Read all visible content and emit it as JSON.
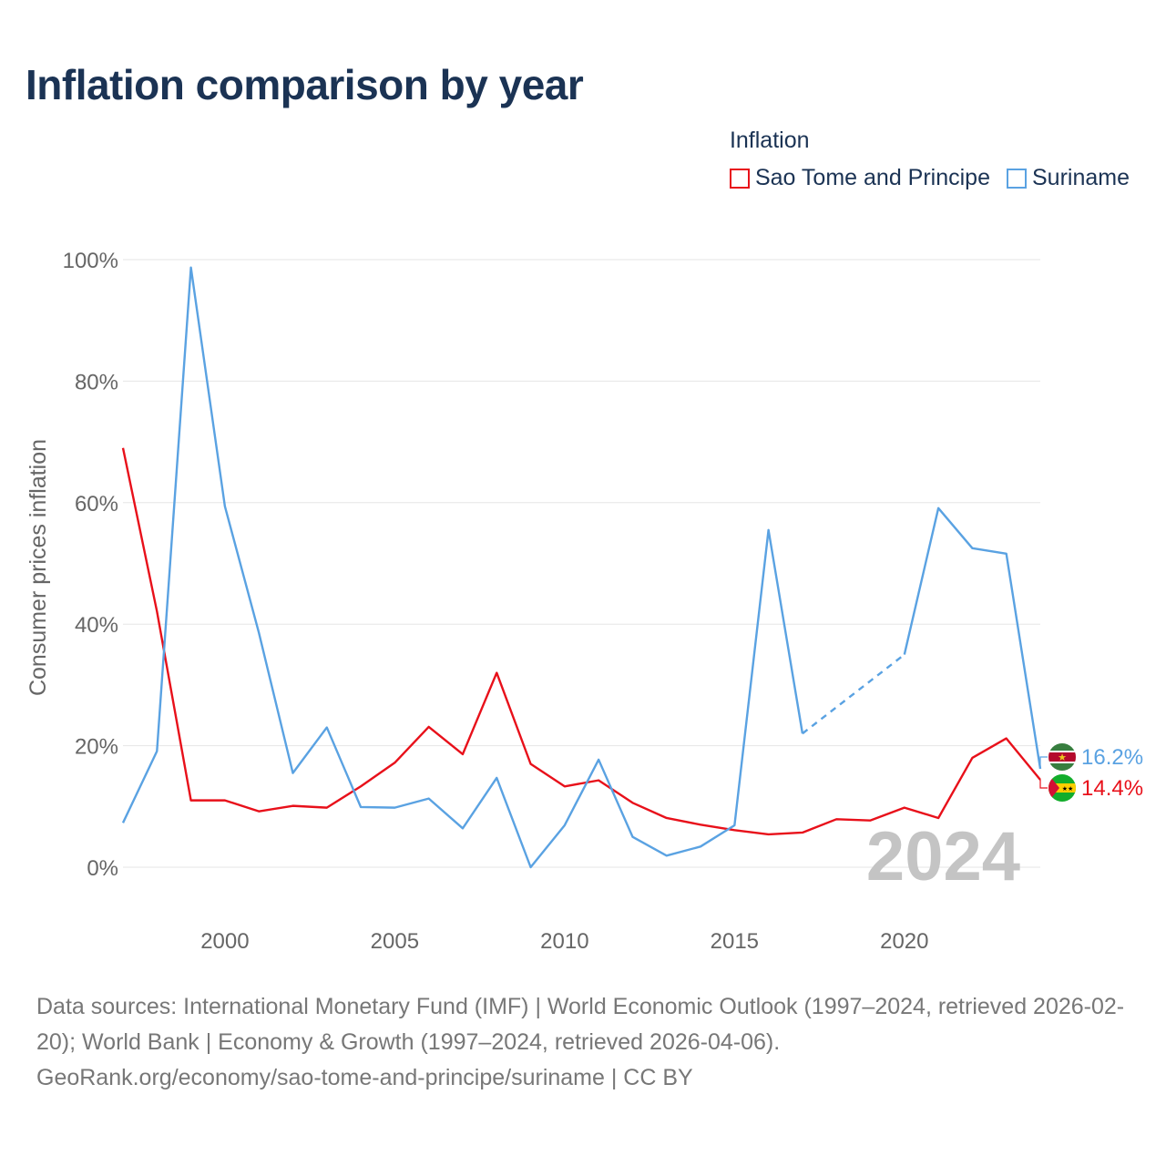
{
  "title": "Inflation comparison by year",
  "legend": {
    "title": "Inflation",
    "items": [
      {
        "label": "Sao Tome and Principe",
        "color": "#e8101a"
      },
      {
        "label": "Suriname",
        "color": "#5aa2e2"
      }
    ]
  },
  "footer": {
    "sources": "Data sources: International Monetary Fund (IMF) | World Economic Outlook (1997–2024, retrieved 2026-02-20); World Bank | Economy & Growth (1997–2024, retrieved 2026-04-06).",
    "credit": "GeoRank.org/economy/sao-tome-and-principe/suriname | CC BY"
  },
  "chart_data": {
    "type": "line",
    "title": "Inflation comparison by year",
    "ylabel": "Consumer prices inflation",
    "xlabel": "",
    "x": [
      1997,
      1998,
      1999,
      2000,
      2001,
      2002,
      2003,
      2004,
      2005,
      2006,
      2007,
      2008,
      2009,
      2010,
      2011,
      2012,
      2013,
      2014,
      2015,
      2016,
      2017,
      2018,
      2019,
      2020,
      2021,
      2022,
      2023,
      2024
    ],
    "xlim": [
      1997,
      2024
    ],
    "ylim": [
      0,
      100
    ],
    "x_ticks": [
      2000,
      2005,
      2010,
      2015,
      2020
    ],
    "y_ticks": [
      0,
      20,
      40,
      60,
      80,
      100
    ],
    "y_tick_labels": [
      "0%",
      "20%",
      "40%",
      "60%",
      "80%",
      "100%"
    ],
    "grid": true,
    "year_label": "2024",
    "series": [
      {
        "name": "Sao Tome and Principe",
        "color": "#e8101a",
        "values": [
          69.0,
          42.1,
          11.0,
          11.0,
          9.2,
          10.1,
          9.8,
          13.3,
          17.2,
          23.1,
          18.6,
          32.0,
          17.0,
          13.3,
          14.3,
          10.6,
          8.1,
          7.0,
          6.1,
          5.4,
          5.7,
          7.9,
          7.7,
          9.8,
          8.1,
          18.0,
          21.2,
          14.4
        ],
        "dashed_after": null,
        "end_label": "14.4%",
        "flag": "sao-tome-and-principe-flag-icon"
      },
      {
        "name": "Suriname",
        "color": "#5aa2e2",
        "values": [
          7.3,
          19.1,
          98.7,
          59.4,
          38.6,
          15.5,
          23.0,
          9.9,
          9.8,
          11.3,
          6.4,
          14.7,
          0.0,
          6.9,
          17.7,
          5.0,
          1.9,
          3.4,
          6.9,
          55.5,
          22.0,
          null,
          null,
          35.0,
          59.1,
          52.5,
          51.6,
          16.2
        ],
        "dashed_segments": [
          [
            2017,
            2020
          ]
        ],
        "end_label": "16.2%",
        "flag": "suriname-flag-icon"
      }
    ]
  }
}
